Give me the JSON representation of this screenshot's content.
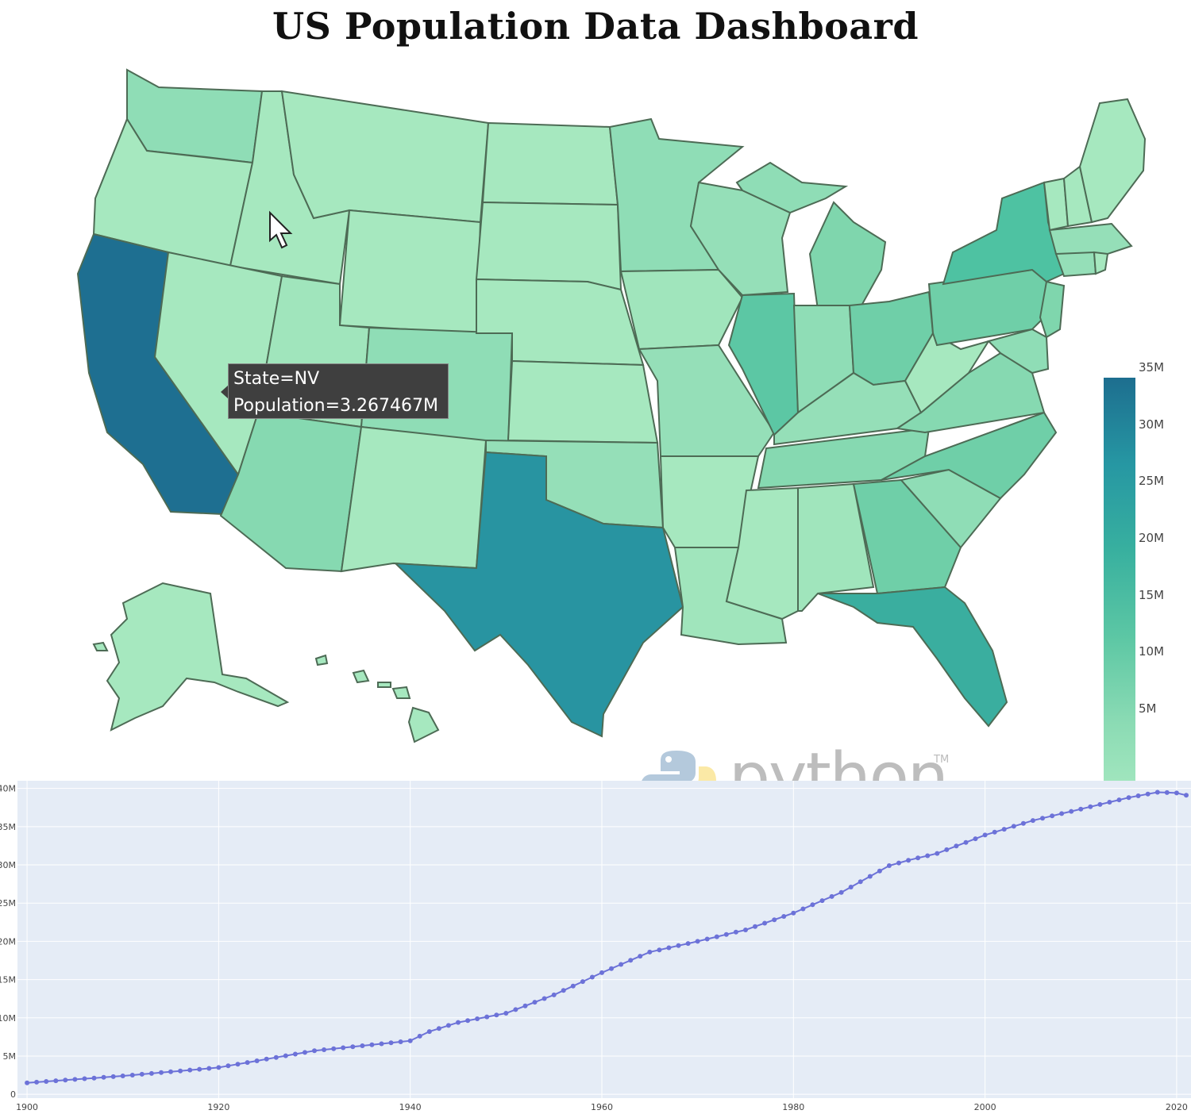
{
  "header": {
    "title": "US Population Data Dashboard"
  },
  "tooltip": {
    "line1": "State=NV",
    "line2": "Population=3.267467M"
  },
  "colorbar": {
    "ticks": [
      "35M",
      "30M",
      "25M",
      "20M",
      "15M",
      "10M",
      "5M"
    ]
  },
  "logo": {
    "word": "python",
    "tm": "TM"
  },
  "colors": {
    "low": "#a6e8bf",
    "mid": "#7fd6ad",
    "high_mid": "#4ec2a2",
    "high": "#2894a1",
    "max": "#1e6f91",
    "line": "#6c72d8",
    "plot_bg": "#e5ecf6"
  },
  "chart_data": [
    {
      "type": "choropleth",
      "variable": "Population",
      "colorscale_range": [
        1,
        39
      ],
      "colorbar_ticks": [
        "35M",
        "30M",
        "25M",
        "20M",
        "15M",
        "10M",
        "5M"
      ],
      "hover": {
        "state": "NV",
        "population": "3.267467M"
      }
    },
    {
      "type": "line",
      "x_ticks": [
        "1900",
        "1920",
        "1940",
        "1960",
        "1980",
        "2000",
        "2020"
      ],
      "y_ticks": [
        "0",
        "5M",
        "10M",
        "15M",
        "20M",
        "25M",
        "30M",
        "35M",
        "40M"
      ],
      "xlim": [
        1899,
        2021.5
      ],
      "ylim": [
        -0.5,
        41
      ],
      "x": [
        1900,
        1910,
        1920,
        1930,
        1940,
        1942,
        1945,
        1950,
        1955,
        1960,
        1965,
        1970,
        1975,
        1980,
        1985,
        1990,
        1992,
        1995,
        2000,
        2005,
        2010,
        2015,
        2018,
        2020,
        2021
      ],
      "y": [
        1.5,
        2.4,
        3.5,
        5.7,
        7.0,
        8.2,
        9.4,
        10.6,
        13.0,
        15.9,
        18.6,
        20.0,
        21.5,
        23.7,
        26.4,
        29.9,
        30.6,
        31.5,
        33.9,
        35.8,
        37.3,
        38.8,
        39.5,
        39.4,
        39.1
      ]
    }
  ]
}
